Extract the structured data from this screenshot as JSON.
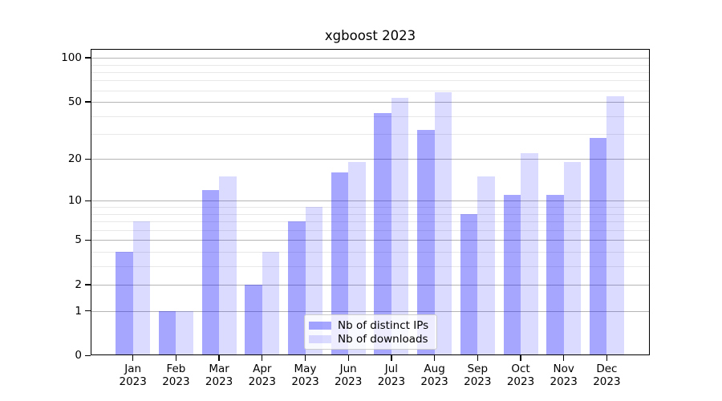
{
  "title": "xgboost 2023",
  "colors": {
    "bar_ips": "rgba(0,0,255,0.35)",
    "bar_downloads": "rgba(0,0,255,0.14)",
    "grid_major": "#b5b5b5",
    "grid_minor": "#e8e8e8",
    "axis": "#000000"
  },
  "legend": {
    "items": [
      {
        "label": "Nb of distinct IPs",
        "color_key": "bar_ips"
      },
      {
        "label": "Nb of downloads",
        "color_key": "bar_downloads"
      }
    ]
  },
  "chart_data": {
    "type": "bar",
    "title": "xgboost 2023",
    "categories": [
      {
        "month": "Jan",
        "year": "2023"
      },
      {
        "month": "Feb",
        "year": "2023"
      },
      {
        "month": "Mar",
        "year": "2023"
      },
      {
        "month": "Apr",
        "year": "2023"
      },
      {
        "month": "May",
        "year": "2023"
      },
      {
        "month": "Jun",
        "year": "2023"
      },
      {
        "month": "Jul",
        "year": "2023"
      },
      {
        "month": "Aug",
        "year": "2023"
      },
      {
        "month": "Sep",
        "year": "2023"
      },
      {
        "month": "Oct",
        "year": "2023"
      },
      {
        "month": "Nov",
        "year": "2023"
      },
      {
        "month": "Dec",
        "year": "2023"
      }
    ],
    "series": [
      {
        "name": "Nb of distinct IPs",
        "values": [
          4,
          1,
          12,
          2,
          7,
          16,
          42,
          32,
          8,
          11,
          11,
          28
        ]
      },
      {
        "name": "Nb of downloads",
        "values": [
          7,
          1,
          15,
          4,
          9,
          19,
          53,
          58,
          15,
          22,
          19,
          55
        ]
      }
    ],
    "xlabel": "",
    "ylabel": "",
    "yscale": "log1p",
    "yticks": [
      0,
      1,
      2,
      5,
      10,
      20,
      50,
      100
    ],
    "minor_yticks": [
      3,
      4,
      6,
      7,
      8,
      9,
      30,
      40,
      60,
      70,
      80,
      90
    ],
    "ylim": [
      0,
      115
    ],
    "grid": true,
    "legend_position": "lower center"
  }
}
